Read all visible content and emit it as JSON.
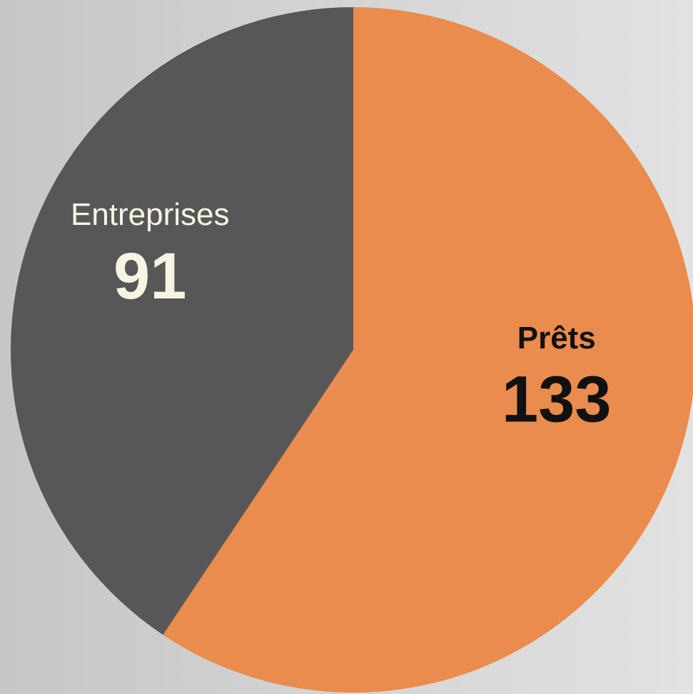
{
  "chart_data": {
    "type": "pie",
    "categories": [
      "Prêts",
      "Entreprises"
    ],
    "values": [
      133,
      91
    ],
    "colors": [
      "#e98c4e",
      "#575757"
    ],
    "label_colors": [
      "#111111",
      "#f7f4e3"
    ]
  }
}
